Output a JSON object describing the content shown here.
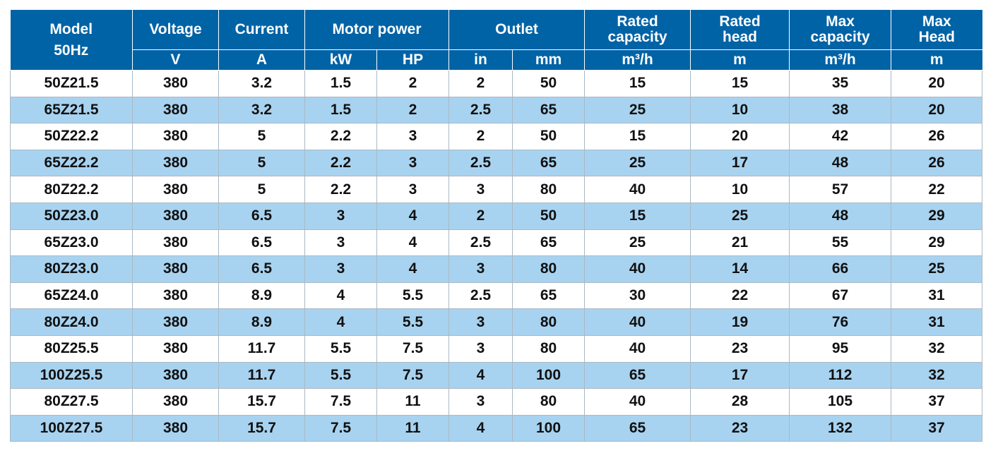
{
  "header": {
    "model": "Model",
    "model_sub": "50Hz",
    "voltage": "Voltage",
    "current": "Current",
    "motor_power": "Motor power",
    "outlet": "Outlet",
    "rated_capacity_1": "Rated",
    "rated_capacity_2": "capacity",
    "rated_head_1": "Rated",
    "rated_head_2": "head",
    "max_capacity_1": "Max",
    "max_capacity_2": "capacity",
    "max_head_1": "Max",
    "max_head_2": "Head"
  },
  "units": [
    "V",
    "A",
    "kW",
    "HP",
    "in",
    "mm",
    "m³/h",
    "m",
    "m³/h",
    "m"
  ],
  "rows": [
    [
      "50Z21.5",
      "380",
      "3.2",
      "1.5",
      "2",
      "2",
      "50",
      "15",
      "15",
      "35",
      "20"
    ],
    [
      "65Z21.5",
      "380",
      "3.2",
      "1.5",
      "2",
      "2.5",
      "65",
      "25",
      "10",
      "38",
      "20"
    ],
    [
      "50Z22.2",
      "380",
      "5",
      "2.2",
      "3",
      "2",
      "50",
      "15",
      "20",
      "42",
      "26"
    ],
    [
      "65Z22.2",
      "380",
      "5",
      "2.2",
      "3",
      "2.5",
      "65",
      "25",
      "17",
      "48",
      "26"
    ],
    [
      "80Z22.2",
      "380",
      "5",
      "2.2",
      "3",
      "3",
      "80",
      "40",
      "10",
      "57",
      "22"
    ],
    [
      "50Z23.0",
      "380",
      "6.5",
      "3",
      "4",
      "2",
      "50",
      "15",
      "25",
      "48",
      "29"
    ],
    [
      "65Z23.0",
      "380",
      "6.5",
      "3",
      "4",
      "2.5",
      "65",
      "25",
      "21",
      "55",
      "29"
    ],
    [
      "80Z23.0",
      "380",
      "6.5",
      "3",
      "4",
      "3",
      "80",
      "40",
      "14",
      "66",
      "25"
    ],
    [
      "65Z24.0",
      "380",
      "8.9",
      "4",
      "5.5",
      "2.5",
      "65",
      "30",
      "22",
      "67",
      "31"
    ],
    [
      "80Z24.0",
      "380",
      "8.9",
      "4",
      "5.5",
      "3",
      "80",
      "40",
      "19",
      "76",
      "31"
    ],
    [
      "80Z25.5",
      "380",
      "11.7",
      "5.5",
      "7.5",
      "3",
      "80",
      "40",
      "23",
      "95",
      "32"
    ],
    [
      "100Z25.5",
      "380",
      "11.7",
      "5.5",
      "7.5",
      "4",
      "100",
      "65",
      "17",
      "112",
      "32"
    ],
    [
      "80Z27.5",
      "380",
      "15.7",
      "7.5",
      "11",
      "3",
      "80",
      "40",
      "28",
      "105",
      "37"
    ],
    [
      "100Z27.5",
      "380",
      "15.7",
      "7.5",
      "11",
      "4",
      "100",
      "65",
      "23",
      "132",
      "37"
    ]
  ],
  "colors": {
    "header_bg": "#0063a6",
    "header_text": "#ffffff",
    "stripe": "#a8d3f0"
  }
}
